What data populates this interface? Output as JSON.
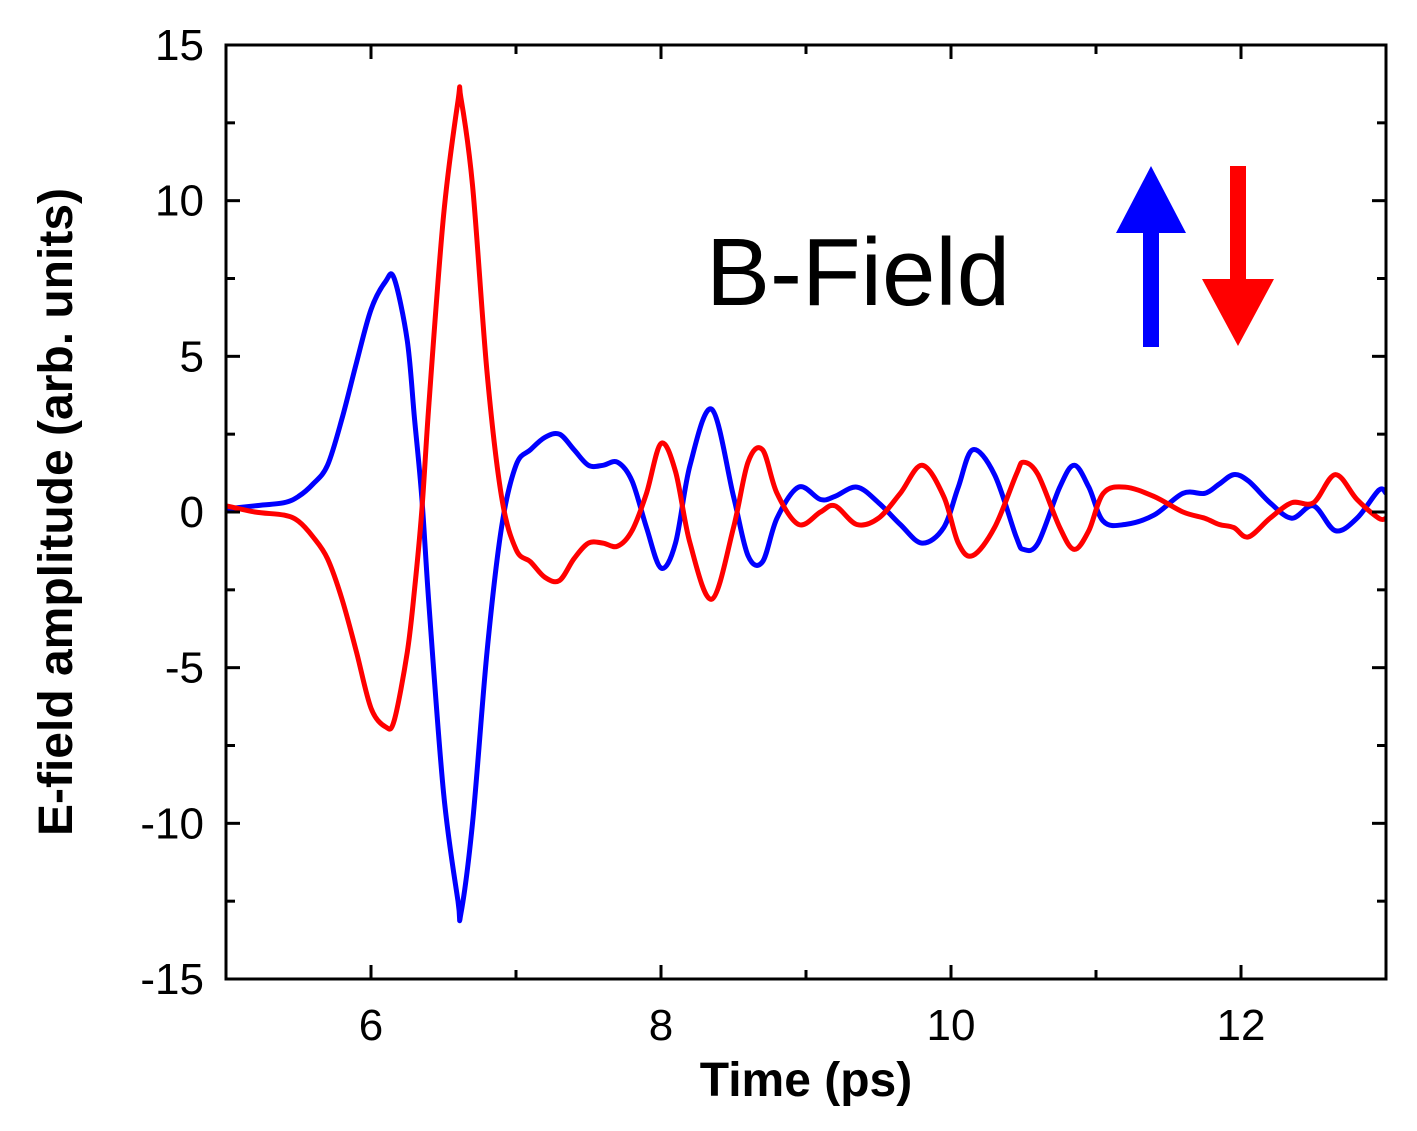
{
  "chart_data": {
    "type": "line",
    "title": "",
    "xlabel": "Time (ps)",
    "ylabel": "E-field amplitude (arb. units)",
    "xlim": [
      5,
      13
    ],
    "ylim": [
      -15,
      15
    ],
    "x_ticks": [
      6,
      8,
      10,
      12
    ],
    "x_tick_labels": [
      "6",
      "8",
      "10",
      "12"
    ],
    "y_ticks": [
      -15,
      -10,
      -5,
      0,
      5,
      10,
      15
    ],
    "y_tick_labels": [
      "-15",
      "-10",
      "-5",
      "0",
      "5",
      "10",
      "15"
    ],
    "grid": false,
    "legend": "none",
    "annotation": {
      "text": "B-Field",
      "arrows": [
        {
          "direction": "up",
          "color": "#0000ff"
        },
        {
          "direction": "down",
          "color": "#ff0000"
        }
      ]
    },
    "series": [
      {
        "color": "#0000ff",
        "x": [
          5.0,
          5.2,
          5.4,
          5.5,
          5.6,
          5.7,
          5.8,
          5.9,
          6.0,
          6.1,
          6.16,
          6.25,
          6.3,
          6.35,
          6.4,
          6.5,
          6.6,
          6.62,
          6.7,
          6.8,
          6.9,
          7.0,
          7.1,
          7.2,
          7.3,
          7.4,
          7.5,
          7.6,
          7.7,
          7.8,
          7.9,
          8.0,
          8.1,
          8.2,
          8.35,
          8.5,
          8.6,
          8.7,
          8.8,
          8.95,
          9.1,
          9.2,
          9.35,
          9.5,
          9.65,
          9.8,
          9.95,
          10.05,
          10.15,
          10.3,
          10.45,
          10.5,
          10.6,
          10.75,
          10.85,
          10.95,
          11.05,
          11.2,
          11.4,
          11.6,
          11.75,
          11.85,
          11.95,
          12.05,
          12.2,
          12.35,
          12.5,
          12.65,
          12.8,
          12.95,
          13.0
        ],
        "y": [
          0.1,
          0.2,
          0.3,
          0.5,
          0.9,
          1.5,
          3.0,
          4.8,
          6.5,
          7.4,
          7.5,
          5.5,
          3.0,
          0.5,
          -3.0,
          -9.0,
          -12.5,
          -12.9,
          -10.0,
          -4.5,
          -0.5,
          1.5,
          2.0,
          2.4,
          2.5,
          2.0,
          1.5,
          1.5,
          1.6,
          1.0,
          -0.5,
          -1.8,
          -1.0,
          1.5,
          3.3,
          0.5,
          -1.4,
          -1.6,
          -0.2,
          0.8,
          0.4,
          0.5,
          0.8,
          0.3,
          -0.4,
          -1.0,
          -0.5,
          0.8,
          2.0,
          1.2,
          -0.8,
          -1.2,
          -1.0,
          0.8,
          1.5,
          0.8,
          -0.3,
          -0.4,
          -0.1,
          0.6,
          0.6,
          0.9,
          1.2,
          1.0,
          0.3,
          -0.2,
          0.2,
          -0.6,
          -0.2,
          0.7,
          0.6
        ]
      },
      {
        "color": "#ff0000",
        "x": [
          5.0,
          5.2,
          5.4,
          5.5,
          5.6,
          5.7,
          5.8,
          5.9,
          6.0,
          6.1,
          6.16,
          6.25,
          6.3,
          6.35,
          6.4,
          6.5,
          6.6,
          6.62,
          6.7,
          6.8,
          6.9,
          7.0,
          7.1,
          7.2,
          7.3,
          7.4,
          7.5,
          7.6,
          7.7,
          7.8,
          7.9,
          8.0,
          8.1,
          8.2,
          8.35,
          8.5,
          8.6,
          8.7,
          8.8,
          8.95,
          9.1,
          9.2,
          9.35,
          9.5,
          9.65,
          9.8,
          9.95,
          10.05,
          10.15,
          10.3,
          10.45,
          10.5,
          10.6,
          10.75,
          10.85,
          10.95,
          11.05,
          11.2,
          11.4,
          11.6,
          11.75,
          11.85,
          11.95,
          12.05,
          12.2,
          12.35,
          12.5,
          12.65,
          12.8,
          12.95,
          13.0
        ],
        "y": [
          0.2,
          0.0,
          -0.1,
          -0.3,
          -0.8,
          -1.5,
          -2.8,
          -4.5,
          -6.3,
          -6.9,
          -6.7,
          -4.5,
          -2.5,
          0.0,
          3.5,
          9.5,
          13.2,
          13.3,
          10.5,
          4.5,
          0.5,
          -1.2,
          -1.6,
          -2.1,
          -2.2,
          -1.5,
          -1.0,
          -1.0,
          -1.1,
          -0.6,
          0.6,
          2.2,
          1.3,
          -1.0,
          -2.8,
          -0.5,
          1.6,
          2.0,
          0.6,
          -0.4,
          0.0,
          0.2,
          -0.4,
          -0.2,
          0.6,
          1.5,
          0.5,
          -1.0,
          -1.4,
          -0.5,
          1.2,
          1.6,
          1.2,
          -0.5,
          -1.2,
          -0.6,
          0.6,
          0.8,
          0.5,
          0.0,
          -0.2,
          -0.4,
          -0.5,
          -0.8,
          -0.2,
          0.3,
          0.3,
          1.2,
          0.4,
          -0.2,
          -0.2
        ]
      }
    ]
  }
}
